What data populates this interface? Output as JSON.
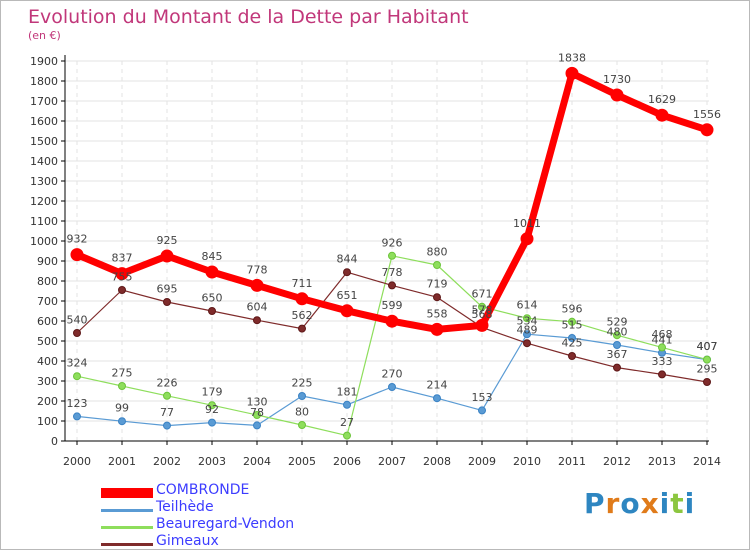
{
  "title": "Evolution du Montant de la Dette par Habitant",
  "unit_label": "(en €)",
  "logo_text": [
    "P",
    "r",
    "o",
    "x",
    "i",
    "t",
    "i"
  ],
  "logo_colors": [
    "#2e86c1",
    "#e07b1a",
    "#2e86c1",
    "#e07b1a",
    "#2e86c1",
    "#8cc63f",
    "#2e86c1"
  ],
  "colors": {
    "grid": "#e3e3e3",
    "axis": "#000000",
    "tick_text": "#333333",
    "label_text": "#444444"
  },
  "chart_data": {
    "type": "line",
    "x": [
      "2000",
      "2001",
      "2002",
      "2003",
      "2004",
      "2005",
      "2006",
      "2007",
      "2008",
      "2009",
      "2010",
      "2011",
      "2012",
      "2013",
      "2014"
    ],
    "ylim": [
      0,
      1900
    ],
    "yticks": [
      0,
      100,
      200,
      300,
      400,
      500,
      600,
      700,
      800,
      900,
      1000,
      1100,
      1200,
      1300,
      1400,
      1500,
      1600,
      1700,
      1800,
      1900
    ],
    "grid": true,
    "legend_position": "bottom-left",
    "series": [
      {
        "name": "Teilhède",
        "color": "#5a9bd4",
        "marker": "#3a82c4",
        "width": 1.2,
        "radius": 3.5,
        "values": [
          123,
          99,
          77,
          92,
          78,
          225,
          181,
          270,
          214,
          153,
          534,
          515,
          480,
          441,
          407
        ],
        "labels": [
          "123",
          "99",
          "77",
          "92",
          "78",
          "225",
          "181",
          "270",
          "214",
          "153",
          "534",
          "515",
          "480",
          "441",
          "407"
        ]
      },
      {
        "name": "Beauregard-Vendon",
        "color": "#8ede5c",
        "marker": "#6cc43a",
        "width": 1.2,
        "radius": 3.5,
        "values": [
          324,
          275,
          226,
          179,
          130,
          80,
          27,
          926,
          880,
          671,
          614,
          596,
          529,
          468,
          407
        ],
        "labels": [
          "324",
          "275",
          "226",
          "179",
          "130",
          "80",
          "27",
          "926",
          "880",
          "671",
          "614",
          "596",
          "529",
          "468",
          "407"
        ]
      },
      {
        "name": "Gimeaux",
        "color": "#7f2b2b",
        "marker": "#5e1818",
        "width": 1.2,
        "radius": 3.5,
        "values": [
          540,
          755,
          695,
          650,
          604,
          562,
          844,
          778,
          719,
          568,
          489,
          425,
          367,
          333,
          295
        ],
        "labels": [
          "540",
          "755",
          "695",
          "650",
          "604",
          "562",
          "844",
          "778",
          "719",
          "568",
          "489",
          "425",
          "367",
          "333",
          "295"
        ]
      },
      {
        "name": "COMBRONDE",
        "color": "#ff0000",
        "marker": "#ff0000",
        "width": 7,
        "radius": 6,
        "values": [
          932,
          837,
          925,
          845,
          778,
          711,
          651,
          599,
          558,
          578,
          1011,
          1838,
          1730,
          1629,
          1556
        ],
        "labels": [
          "932",
          "837",
          "925",
          "845",
          "778",
          "711",
          "651",
          "599",
          "558",
          "578",
          "1011",
          "1838",
          "1730",
          "1629",
          "1556"
        ]
      }
    ]
  },
  "legend": [
    {
      "name": "COMBRONDE",
      "color": "#ff0000",
      "text_color": "#3c3cff",
      "swatch_h": 10
    },
    {
      "name": "Teilhède",
      "color": "#5a9bd4",
      "text_color": "#3c3cff",
      "swatch_h": 3
    },
    {
      "name": "Beauregard-Vendon",
      "color": "#8ede5c",
      "text_color": "#3c3cff",
      "swatch_h": 3
    },
    {
      "name": "Gimeaux",
      "color": "#7f2b2b",
      "text_color": "#3c3cff",
      "swatch_h": 3
    }
  ]
}
